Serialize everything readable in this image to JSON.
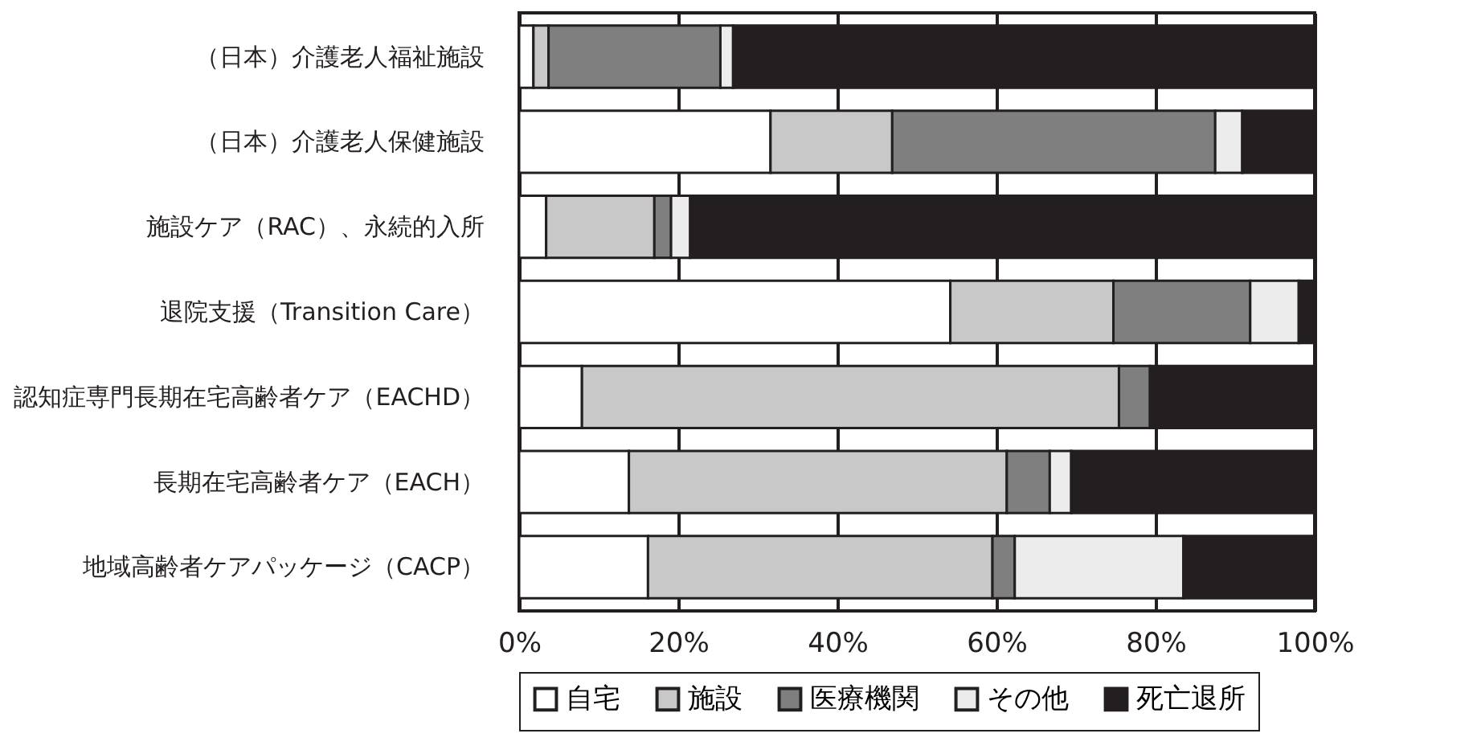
{
  "chart_data": {
    "type": "bar",
    "orientation": "horizontal",
    "stacked": true,
    "categories": [
      "（日本）介護老人福祉施設",
      "（日本）介護老人保健施設",
      "施設ケア（RAC）、永続的入所",
      "退院支援（Transition Care）",
      "認知症専門長期在宅高齢者ケア（EACHD）",
      "長期在宅高齢者ケア（EACH）",
      "地域高齢者ケアパッケージ（CACP）"
    ],
    "series": [
      {
        "name": "自宅",
        "color": "#ffffff",
        "values": [
          1.8,
          31.6,
          3.4,
          54.2,
          7.9,
          13.8,
          16.2
        ]
      },
      {
        "name": "施設",
        "color": "#c8c8c8",
        "values": [
          1.9,
          15.3,
          13.6,
          20.5,
          67.5,
          47.5,
          43.3
        ]
      },
      {
        "name": "医療機関",
        "color": "#7f7f7f",
        "values": [
          21.6,
          40.6,
          2.1,
          17.2,
          3.9,
          5.4,
          2.8
        ]
      },
      {
        "name": "その他",
        "color": "#ececec",
        "values": [
          1.6,
          3.4,
          2.4,
          6.1,
          null,
          2.7,
          21.2
        ]
      },
      {
        "name": "死亡退所",
        "color": "#231f20",
        "values": [
          73.1,
          9.1,
          78.5,
          2.0,
          20.7,
          30.6,
          16.5
        ]
      }
    ],
    "xlim": [
      0,
      100
    ],
    "xticks": [
      {
        "value": 0,
        "label": "0%"
      },
      {
        "value": 20,
        "label": "20%"
      },
      {
        "value": 40,
        "label": "40%"
      },
      {
        "value": 60,
        "label": "60%"
      },
      {
        "value": 80,
        "label": "80%"
      },
      {
        "value": 100,
        "label": "100%"
      }
    ],
    "grid": "x",
    "legend": "bottom"
  }
}
